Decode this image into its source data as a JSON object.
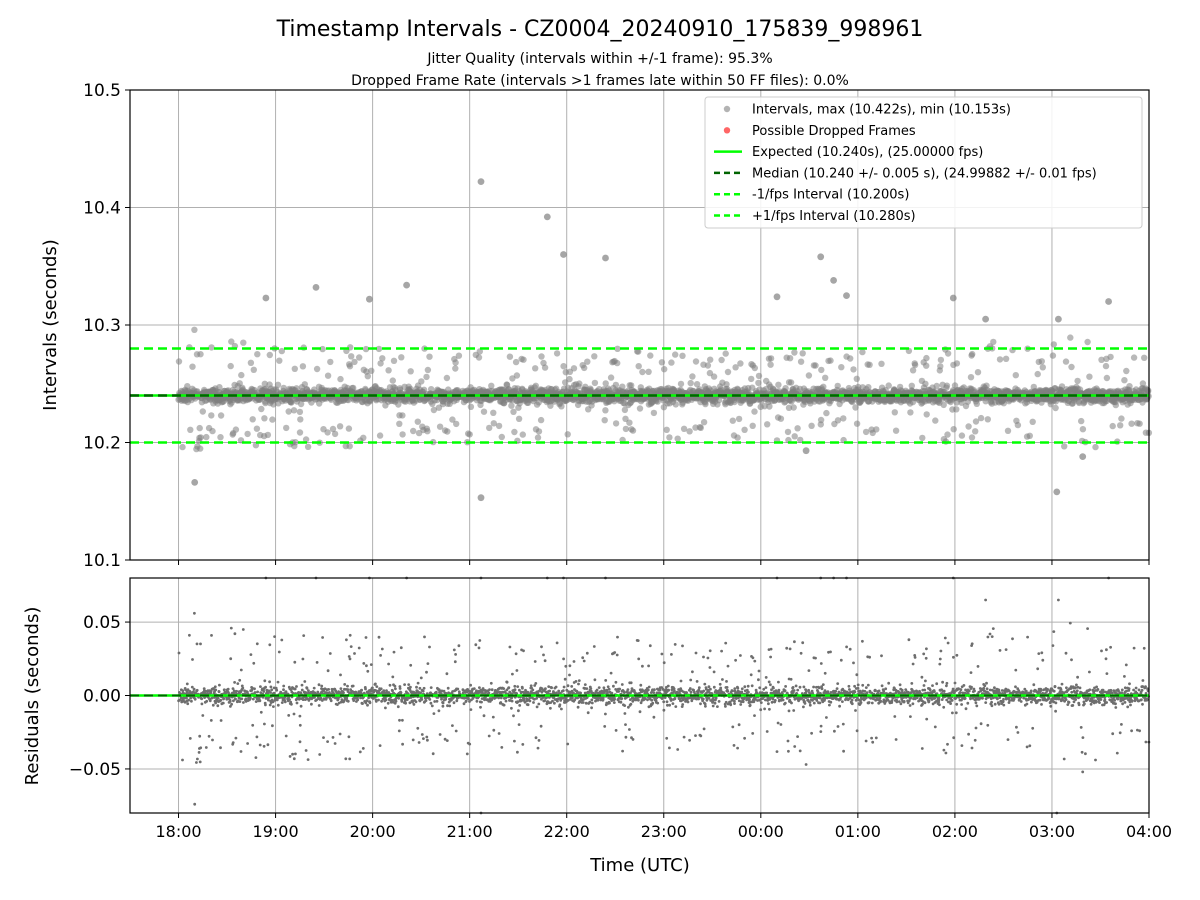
{
  "figure": {
    "title": "Timestamp Intervals - CZ0004_20240910_175839_998961",
    "subtitle_line1": "Jitter Quality (intervals within +/-1 frame): 95.3%",
    "subtitle_line2": "Dropped Frame Rate (intervals >1 frames late within 50 FF files): 0.0%"
  },
  "colors": {
    "scatter": "#808080",
    "dropped": "#ff0000",
    "expected": "#00ff00",
    "median": "#006400",
    "fps_band": "#00ff00",
    "grid": "#b0b0b0",
    "residual_line": "#00ff00"
  },
  "chart_data": [
    {
      "type": "scatter",
      "panel": "intervals",
      "ylabel": "Intervals (seconds)",
      "ylim": [
        10.1,
        10.5
      ],
      "yticks": [
        "10.1",
        "10.2",
        "10.3",
        "10.4",
        "10.5"
      ],
      "xlim_hours": [
        17.5,
        28.0
      ],
      "grid": true,
      "legend_position": "upper-right",
      "legend": [
        {
          "label": "Intervals, max (10.422s), min (10.153s)",
          "kind": "point",
          "color": "#808080"
        },
        {
          "label": "Possible Dropped Frames",
          "kind": "point",
          "color": "#ff0000"
        },
        {
          "label": "Expected (10.240s), (25.00000 fps)",
          "kind": "line",
          "color": "#00ff00"
        },
        {
          "label": "Median (10.240 +/- 0.005 s), (24.99882 +/- 0.01 fps)",
          "kind": "dashed",
          "color": "#006400"
        },
        {
          "label": "-1/fps Interval (10.200s)",
          "kind": "dashed",
          "color": "#00ff00"
        },
        {
          "label": "+1/fps Interval (10.280s)",
          "kind": "dashed",
          "color": "#00ff00"
        }
      ],
      "reference_lines": {
        "expected": 10.24,
        "median": 10.24,
        "minus_fps": 10.2,
        "plus_fps": 10.28
      },
      "series": [
        {
          "name": "Intervals, max (10.422s), min (10.153s)",
          "description_points": "approx. 3500 samples between 18:00 and 04:00, concentrated near 10.240 s",
          "outliers": [
            {
              "t": "21:07",
              "y": 10.422
            },
            {
              "t": "21:07",
              "y": 10.153
            },
            {
              "t": "21:48",
              "y": 10.392
            },
            {
              "t": "21:58",
              "y": 10.36
            },
            {
              "t": "22:24",
              "y": 10.357
            },
            {
              "t": "00:37",
              "y": 10.358
            },
            {
              "t": "00:45",
              "y": 10.338
            },
            {
              "t": "00:53",
              "y": 10.325
            },
            {
              "t": "19:25",
              "y": 10.332
            },
            {
              "t": "20:21",
              "y": 10.334
            },
            {
              "t": "18:10",
              "y": 10.166
            },
            {
              "t": "03:03",
              "y": 10.158
            },
            {
              "t": "03:19",
              "y": 10.188
            },
            {
              "t": "03:35",
              "y": 10.32
            },
            {
              "t": "00:28",
              "y": 10.193
            },
            {
              "t": "02:19",
              "y": 10.305
            },
            {
              "t": "03:04",
              "y": 10.305
            },
            {
              "t": "18:54",
              "y": 10.323
            },
            {
              "t": "19:58",
              "y": 10.322
            },
            {
              "t": "01:59",
              "y": 10.323
            },
            {
              "t": "00:10",
              "y": 10.324
            }
          ]
        }
      ],
      "xticks": [
        "18:00",
        "19:00",
        "20:00",
        "21:00",
        "22:00",
        "23:00",
        "00:00",
        "01:00",
        "02:00",
        "03:00",
        "04:00"
      ]
    },
    {
      "type": "scatter",
      "panel": "residuals",
      "ylabel": "Residuals (seconds)",
      "xlabel": "Time (UTC)",
      "ylim": [
        -0.08,
        0.08
      ],
      "yticks": [
        "−0.05",
        "0.00",
        "0.05"
      ],
      "xticks": [
        "18:00",
        "19:00",
        "20:00",
        "21:00",
        "22:00",
        "23:00",
        "00:00",
        "01:00",
        "02:00",
        "03:00",
        "04:00"
      ],
      "grid": true,
      "zero_line": 0.0
    }
  ]
}
